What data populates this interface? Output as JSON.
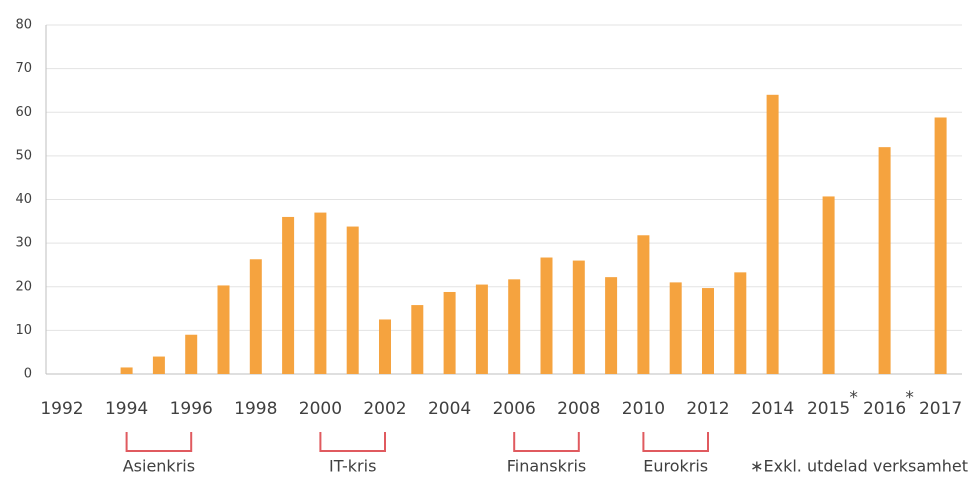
{
  "chart_data": {
    "type": "bar",
    "categories": [
      "1992",
      null,
      "1994",
      null,
      "1996",
      null,
      "1998",
      null,
      "2000",
      null,
      "2002",
      null,
      "2004",
      null,
      "2006",
      null,
      "2008",
      null,
      "2010",
      null,
      "2012",
      null,
      "2014",
      "2015",
      "2016",
      "2017"
    ],
    "values": [
      null,
      null,
      1.5,
      4,
      9,
      20.3,
      26.3,
      36,
      37,
      33.8,
      12.5,
      15.8,
      18.8,
      20.5,
      21.7,
      26.7,
      26,
      22.2,
      31.8,
      21,
      19.7,
      23.3,
      64,
      40.7,
      52,
      58.8
    ],
    "color": "#f5a33f",
    "ylim": [
      0,
      80
    ],
    "yticks": [
      0,
      10,
      20,
      30,
      40,
      50,
      60,
      70,
      80
    ],
    "grid": true,
    "markers": [
      {
        "category": "2015",
        "text": "*"
      },
      {
        "category": "2016",
        "text": "*"
      }
    ],
    "annotations": [
      {
        "text": "Asienkris",
        "from": "1994",
        "to": "1996"
      },
      {
        "text": "IT-kris",
        "from": "2000",
        "to": "2002"
      },
      {
        "text": "Finanskris",
        "from": "2006",
        "to": "2008"
      },
      {
        "text": "Eurokris",
        "from": "2010",
        "to": "2012"
      }
    ],
    "bracket_color": "#e05a5f",
    "footnote": "∗Exkl. utdelad verksamhet"
  }
}
